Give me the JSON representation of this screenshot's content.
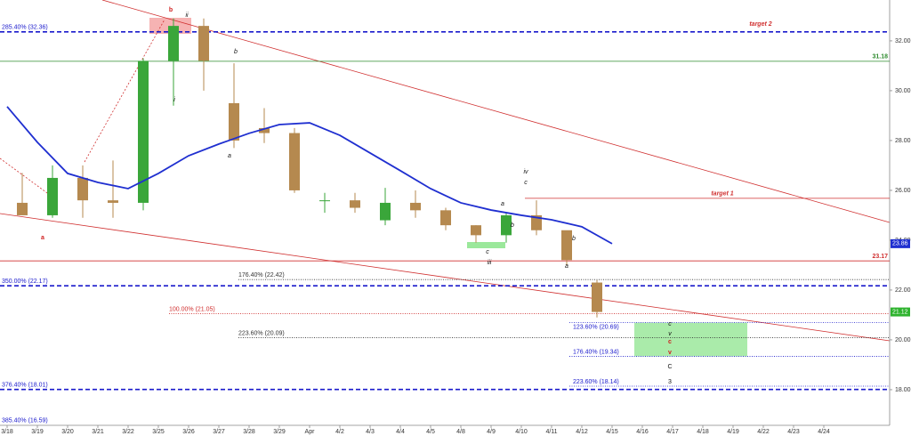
{
  "chart_data": {
    "type": "candlestick",
    "categories": [
      "3/18",
      "3/19",
      "3/20",
      "3/21",
      "3/22",
      "3/25",
      "3/26",
      "3/27",
      "3/28",
      "3/29",
      "Apr",
      "4/2",
      "4/3",
      "4/4",
      "4/5",
      "4/8",
      "4/9",
      "4/10",
      "4/11",
      "4/12",
      "4/15",
      "4/16",
      "4/17",
      "4/18",
      "4/19",
      "4/22",
      "4/23",
      "4/24"
    ],
    "open": [
      25.5,
      25.0,
      26.5,
      25.6,
      25.5,
      31.2,
      32.6,
      29.5,
      28.5,
      28.3,
      25.6,
      25.6,
      24.8,
      25.5,
      25.2,
      24.6,
      24.2,
      25.0,
      24.4,
      22.3,
      null,
      null,
      null,
      null,
      null,
      null,
      null,
      null
    ],
    "high": [
      26.7,
      27.0,
      27.0,
      27.2,
      31.3,
      32.9,
      32.9,
      31.1,
      29.3,
      28.5,
      25.9,
      25.9,
      26.1,
      26.0,
      25.3,
      24.6,
      25.1,
      25.6,
      24.3,
      22.4,
      null,
      null,
      null,
      null,
      null,
      null,
      null,
      null
    ],
    "low": [
      25.1,
      24.9,
      24.9,
      24.9,
      25.2,
      29.4,
      30.0,
      27.7,
      27.9,
      25.9,
      25.1,
      25.1,
      24.6,
      24.9,
      24.4,
      23.9,
      23.9,
      24.2,
      23.0,
      20.9,
      null,
      null,
      null,
      null,
      null,
      null,
      null,
      null
    ],
    "close": [
      25.0,
      26.5,
      25.6,
      25.5,
      31.2,
      32.6,
      31.2,
      28.0,
      28.3,
      26.0,
      25.6,
      25.3,
      25.5,
      25.2,
      24.6,
      24.2,
      25.0,
      24.4,
      23.2,
      21.12,
      null,
      null,
      null,
      null,
      null,
      null,
      null,
      null
    ],
    "up_color": "#3aa63a",
    "down_color": "#b5894f",
    "series": [
      {
        "color": "#1f2fd0",
        "values": [
          29.36,
          27.93,
          26.68,
          26.32,
          26.07,
          26.68,
          27.39,
          27.86,
          28.29,
          28.64,
          28.71,
          28.21,
          27.5,
          26.79,
          26.07,
          25.5,
          25.21,
          25.0,
          24.82,
          24.54,
          23.86,
          null,
          null,
          null,
          null,
          null,
          null,
          null
        ]
      }
    ],
    "ylim": [
      16.57,
      33.64
    ],
    "yticks": [
      {
        "value": 18,
        "label": "18.00"
      },
      {
        "value": 20,
        "label": "20.00"
      },
      {
        "value": 22,
        "label": "22.00"
      },
      {
        "value": 24,
        "label": "24.00"
      },
      {
        "value": 26,
        "label": "26.00"
      },
      {
        "value": 28,
        "label": "28.00"
      },
      {
        "value": 30,
        "label": "30.00"
      },
      {
        "value": 32,
        "label": "32.00"
      }
    ],
    "levels": [
      {
        "label": "285.40% (32.36)",
        "value": 32.36,
        "color": "#1a1acc",
        "style": "dashed"
      },
      {
        "value": 31.18,
        "color": "#2e8b2e",
        "style": "solid"
      },
      {
        "label": "target 1",
        "value": 25.68,
        "color": "#d03030",
        "style": "solid"
      },
      {
        "value": 23.17,
        "color": "#d03030",
        "style": "solid"
      },
      {
        "label": "176.40% (22.42)",
        "value": 22.42,
        "color": "#333333",
        "style": "dotted"
      },
      {
        "label": "350.00% (22.17)",
        "value": 22.17,
        "color": "#1a1acc",
        "style": "dashed"
      },
      {
        "label": "100.00% (21.05)",
        "value": 21.05,
        "color": "#d03030",
        "style": "dotted"
      },
      {
        "label": "123.60% (20.69)",
        "value": 20.69,
        "color": "#1a1acc",
        "style": "dotted"
      },
      {
        "label": "223.60% (20.09)",
        "value": 20.09,
        "color": "#333333",
        "style": "dotted"
      },
      {
        "label": "176.40% (19.34)",
        "value": 19.34,
        "color": "#1a1acc",
        "style": "dotted"
      },
      {
        "label": "223.60% (18.14)",
        "value": 18.14,
        "color": "#1a1acc",
        "style": "dotted"
      },
      {
        "label": "376.40% (18.01)",
        "value": 18.01,
        "color": "#1a1acc",
        "style": "dashed"
      },
      {
        "label": "385.40% (16.59)",
        "value": 16.59,
        "color": "#1a1acc",
        "style": "none"
      }
    ],
    "annotations": [
      {
        "text": "target 2",
        "color": "#d03030"
      },
      {
        "text": "b",
        "color": "#d02020"
      },
      {
        "text": "ii",
        "color": "#111111"
      },
      {
        "text": "i",
        "color": "#111111"
      },
      {
        "text": "b",
        "color": "#111111"
      },
      {
        "text": "a",
        "color": "#111111"
      },
      {
        "text": "a",
        "color": "#d02020"
      },
      {
        "text": "a",
        "color": "#111111"
      },
      {
        "text": "iv",
        "color": "#111111"
      },
      {
        "text": "c",
        "color": "#111111"
      },
      {
        "text": "b",
        "color": "#111111"
      },
      {
        "text": "c",
        "color": "#111111"
      },
      {
        "text": "iii",
        "color": "#111111"
      },
      {
        "text": "b",
        "color": "#111111"
      },
      {
        "text": "a",
        "color": "#111111"
      },
      {
        "text": "c",
        "color": "#111111"
      },
      {
        "text": "v",
        "color": "#111111"
      },
      {
        "text": "c",
        "color": "#d02020"
      },
      {
        "text": "v",
        "color": "#d02020"
      },
      {
        "text": "C",
        "color": "#111111"
      },
      {
        "text": "3",
        "color": "#111111"
      }
    ]
  }
}
